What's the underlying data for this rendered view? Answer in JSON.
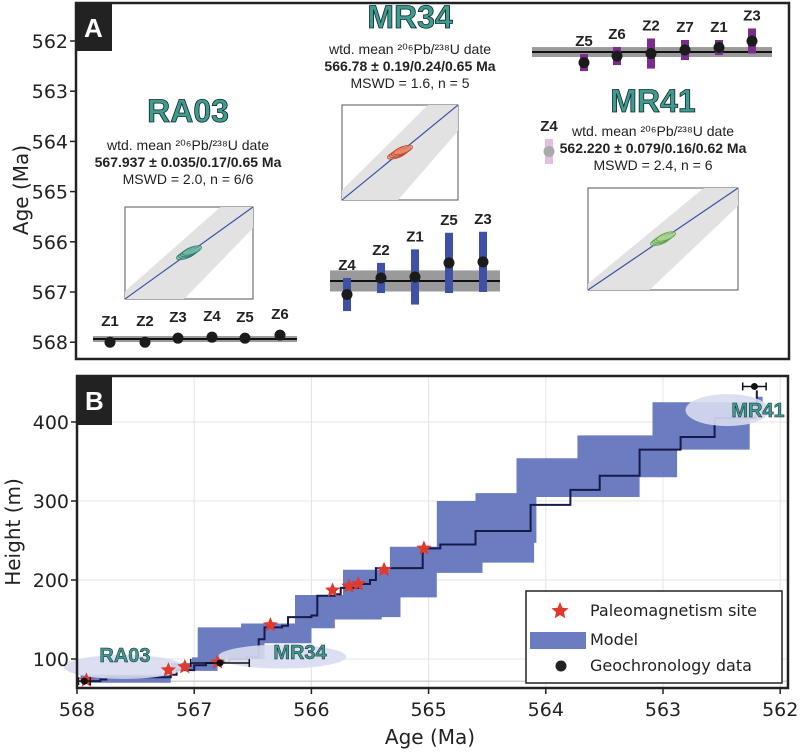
{
  "chart_data": [
    {
      "type": "scatter",
      "panel_label": "A",
      "ylabel": "Age (Ma)",
      "ylim": [
        562,
        568
      ],
      "y_inverted": true,
      "yticks": [
        "562",
        "563",
        "564",
        "565",
        "566",
        "567",
        "568"
      ],
      "samples": [
        {
          "name": "RA03",
          "line1": "wtd. mean ²⁰⁶Pb/²³⁸U date",
          "line2": "567.937 ± 0.035/0.17/0.65 Ma",
          "line3": "MSWD = 2.0, n = 6/6",
          "mean": 567.937,
          "band": 0.035,
          "color": "#333333",
          "grains": [
            {
              "label": "Z1",
              "age": 568.0,
              "err": 0.03
            },
            {
              "label": "Z2",
              "age": 568.0,
              "err": 0.03
            },
            {
              "label": "Z3",
              "age": 567.92,
              "err": 0.03
            },
            {
              "label": "Z4",
              "age": 567.9,
              "err": 0.03
            },
            {
              "label": "Z5",
              "age": 567.92,
              "err": 0.03
            },
            {
              "label": "Z6",
              "age": 567.86,
              "err": 0.03
            }
          ]
        },
        {
          "name": "MR34",
          "line1": "wtd. mean ²⁰⁶Pb/²³⁸U date",
          "line2": "566.78 ± 0.19/0.24/0.65 Ma",
          "line3": "MSWD = 1.6, n = 5",
          "mean": 566.78,
          "band": 0.19,
          "color": "#3f51a6",
          "grains": [
            {
              "label": "Z4",
              "age": 567.05,
              "err": 0.33
            },
            {
              "label": "Z2",
              "age": 566.72,
              "err": 0.3
            },
            {
              "label": "Z1",
              "age": 566.7,
              "err": 0.55
            },
            {
              "label": "Z5",
              "age": 566.42,
              "err": 0.6
            },
            {
              "label": "Z3",
              "age": 566.4,
              "err": 0.6
            }
          ]
        },
        {
          "name": "MR41",
          "line1": "wtd. mean ²⁰⁶Pb/²³⁸U date",
          "line2": "562.220 ± 0.079/0.16/0.62 Ma",
          "line3": "MSWD = 2.4, n = 6",
          "mean": 562.22,
          "band": 0.079,
          "color": "#7b2d8e",
          "grains": [
            {
              "label": "Z5",
              "age": 562.43,
              "err": 0.17
            },
            {
              "label": "Z6",
              "age": 562.3,
              "err": 0.18
            },
            {
              "label": "Z2",
              "age": 562.25,
              "err": 0.3
            },
            {
              "label": "Z7",
              "age": 562.18,
              "err": 0.2
            },
            {
              "label": "Z1",
              "age": 562.13,
              "err": 0.15
            },
            {
              "label": "Z3",
              "age": 562.0,
              "err": 0.25
            },
            {
              "label": "Z4",
              "age": 564.2,
              "err": 0.25,
              "excluded": true
            }
          ]
        }
      ]
    },
    {
      "type": "area",
      "panel_label": "B",
      "xlabel": "Age (Ma)",
      "ylabel": "Height (m)",
      "xlim": [
        568,
        562
      ],
      "ylim": [
        63,
        458
      ],
      "xticks": [
        "568",
        "567",
        "566",
        "565",
        "564",
        "563",
        "562"
      ],
      "yticks": [
        "100",
        "200",
        "300",
        "400"
      ],
      "grid": true,
      "legend_position": "bottom-right",
      "legend": [
        "Paleomagnetism site",
        "Model",
        "Geochronology data"
      ],
      "colors": {
        "model": "#6b7cc0",
        "median": "#161a4a",
        "star": "#e03a2f",
        "label_bg": "#d8dbf0"
      },
      "model_median": [
        [
          567.97,
          72
        ],
        [
          567.8,
          74
        ],
        [
          567.75,
          77
        ],
        [
          567.2,
          80
        ],
        [
          567.15,
          86
        ],
        [
          567.0,
          92
        ],
        [
          566.9,
          95
        ],
        [
          566.8,
          96
        ],
        [
          566.7,
          100
        ],
        [
          566.55,
          102
        ],
        [
          566.45,
          125
        ],
        [
          566.4,
          140
        ],
        [
          566.25,
          142
        ],
        [
          566.2,
          153
        ],
        [
          566.0,
          155
        ],
        [
          565.95,
          180
        ],
        [
          565.8,
          182
        ],
        [
          565.75,
          190
        ],
        [
          565.6,
          195
        ],
        [
          565.5,
          200
        ],
        [
          565.45,
          215
        ],
        [
          565.1,
          215
        ],
        [
          565.05,
          240
        ],
        [
          564.9,
          245
        ],
        [
          564.6,
          262
        ],
        [
          564.13,
          295
        ],
        [
          563.79,
          314
        ],
        [
          563.54,
          332
        ],
        [
          563.2,
          365
        ],
        [
          562.85,
          381
        ],
        [
          562.56,
          405
        ],
        [
          562.21,
          412
        ],
        [
          562.2,
          440
        ]
      ],
      "model_upper": [
        [
          567.97,
          80
        ],
        [
          567.2,
          95
        ],
        [
          567.02,
          102
        ],
        [
          566.97,
          140
        ],
        [
          566.6,
          145
        ],
        [
          566.14,
          181
        ],
        [
          565.73,
          213
        ],
        [
          565.33,
          242
        ],
        [
          564.93,
          300
        ],
        [
          564.6,
          310
        ],
        [
          564.25,
          354
        ],
        [
          563.73,
          383
        ],
        [
          563.09,
          425
        ],
        [
          562.2,
          432
        ],
        [
          562.15,
          415
        ]
      ],
      "model_lower": [
        [
          562.15,
          415
        ],
        [
          562.26,
          365
        ],
        [
          562.88,
          330
        ],
        [
          563.2,
          305
        ],
        [
          564.08,
          247
        ],
        [
          564.1,
          222
        ],
        [
          564.54,
          209
        ],
        [
          564.93,
          178
        ],
        [
          565.24,
          153
        ],
        [
          565.4,
          150
        ],
        [
          565.8,
          139
        ],
        [
          566.0,
          120
        ],
        [
          566.4,
          100
        ],
        [
          566.8,
          85
        ],
        [
          567.2,
          70
        ],
        [
          567.97,
          68
        ]
      ],
      "paleomag_sites": [
        [
          567.92,
          73
        ],
        [
          567.22,
          86
        ],
        [
          567.08,
          90
        ],
        [
          566.8,
          96
        ],
        [
          566.35,
          143
        ],
        [
          565.82,
          187
        ],
        [
          565.68,
          192
        ],
        [
          565.6,
          195
        ],
        [
          565.38,
          213
        ],
        [
          565.04,
          240
        ]
      ],
      "geochronology": [
        {
          "label": "RA03",
          "age": 567.937,
          "height": 72,
          "err": 0.05
        },
        {
          "label": "MR34",
          "age": 566.78,
          "height": 95,
          "err": 0.25
        },
        {
          "label": "MR41",
          "age": 562.22,
          "height": 445,
          "err": 0.1
        }
      ]
    }
  ]
}
